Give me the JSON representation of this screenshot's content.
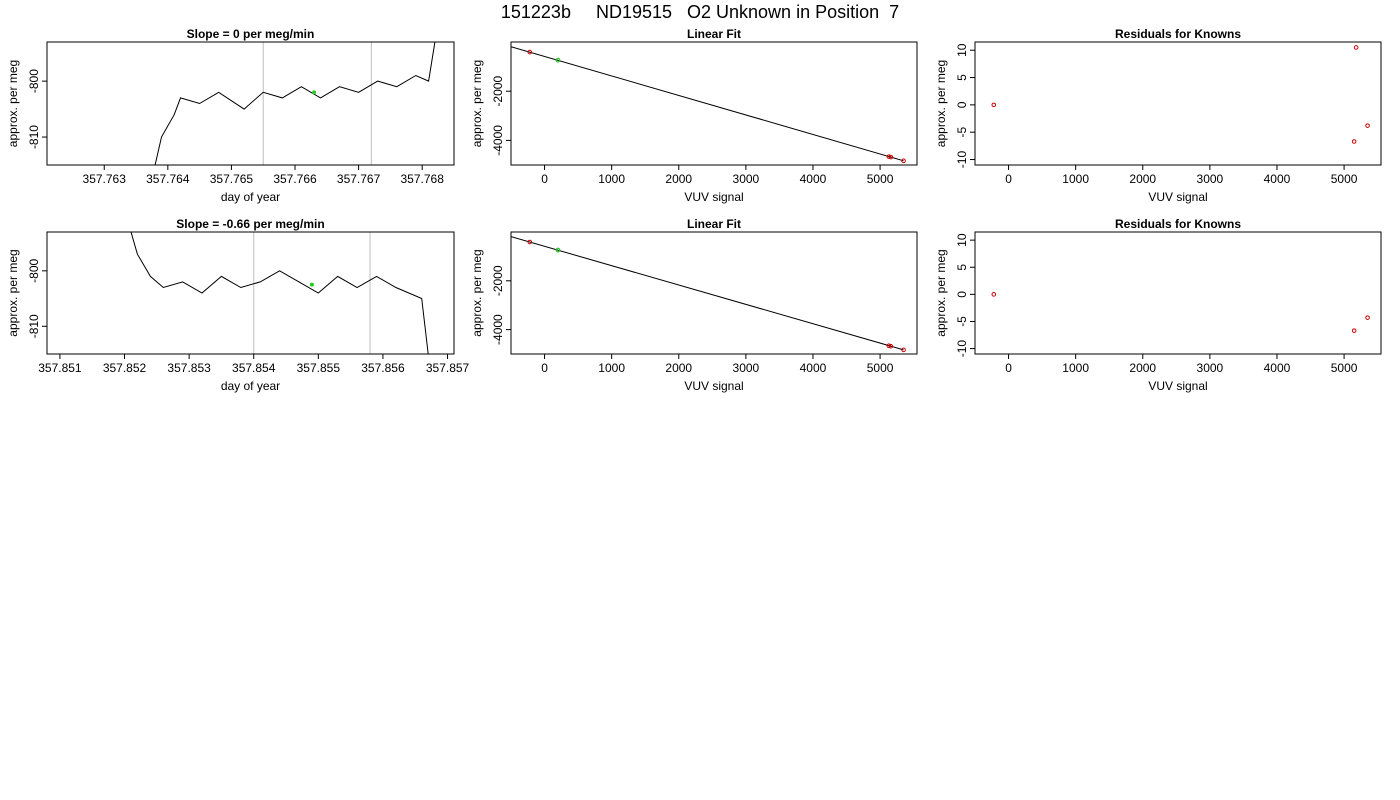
{
  "title": "151223b     ND19515   O2 Unknown in Position  7",
  "colors": {
    "line": "#000000",
    "frame": "#000000",
    "known_point": "#cc0000",
    "unknown_point": "#22cc22",
    "vline": "#bebebe"
  },
  "chart_data": [
    {
      "type": "line",
      "title": "Slope =  0  per meg/min",
      "xlabel": "day of year",
      "ylabel": "approx. per meg",
      "xlim": [
        357.7621,
        357.7685
      ],
      "ylim": [
        -815,
        -793
      ],
      "xticks": [
        357.763,
        357.764,
        357.765,
        357.766,
        357.767,
        357.768
      ],
      "xtick_labels": [
        "357.763",
        "357.764",
        "357.765",
        "357.766",
        "357.767",
        "357.768"
      ],
      "yticks": [
        -810,
        -800
      ],
      "ytick_labels": [
        "-810",
        "-800"
      ],
      "vlines": [
        357.7655,
        357.7672
      ],
      "series": [
        {
          "x": [
            357.7638,
            357.7639,
            357.764,
            357.7641,
            357.7642,
            357.7645,
            357.7648,
            357.7652,
            357.7655,
            357.7658,
            357.7661,
            357.7664,
            357.7667,
            357.767,
            357.7673,
            357.7676,
            357.7679,
            357.7681,
            357.7682
          ],
          "y": [
            -815,
            -810,
            -808,
            -806,
            -803,
            -804,
            -802,
            -805,
            -802,
            -803,
            -801,
            -803,
            -801,
            -802,
            -800,
            -801,
            -799,
            -800,
            -793
          ]
        }
      ],
      "highlight": {
        "x": 357.7663,
        "y": -802
      }
    },
    {
      "type": "scatter",
      "title": "Linear Fit",
      "xlabel": "VUV signal",
      "ylabel": "approx. per meg",
      "xlim": [
        -500,
        5550
      ],
      "ylim": [
        -5000,
        0
      ],
      "xticks": [
        0,
        1000,
        2000,
        3000,
        4000,
        5000
      ],
      "xtick_labels": [
        "0",
        "1000",
        "2000",
        "3000",
        "4000",
        "5000"
      ],
      "yticks": [
        -4000,
        -2000
      ],
      "ytick_labels": [
        "-4000",
        "-2000"
      ],
      "fit_line": {
        "x": [
          -500,
          5350
        ],
        "y": [
          -190,
          -4830
        ]
      },
      "known_points": [
        {
          "x": -220,
          "y": -410
        },
        {
          "x": 5130,
          "y": -4660
        },
        {
          "x": 5160,
          "y": -4680
        },
        {
          "x": 5350,
          "y": -4830
        }
      ],
      "unknown_points": [
        {
          "x": 200,
          "y": -740
        }
      ]
    },
    {
      "type": "scatter",
      "title": "Residuals for Knowns",
      "xlabel": "VUV signal",
      "ylabel": "approx. per meg",
      "xlim": [
        -500,
        5550
      ],
      "ylim": [
        -11,
        11.5
      ],
      "xticks": [
        0,
        1000,
        2000,
        3000,
        4000,
        5000
      ],
      "xtick_labels": [
        "0",
        "1000",
        "2000",
        "3000",
        "4000",
        "5000"
      ],
      "yticks": [
        -10,
        -5,
        0,
        5,
        10
      ],
      "ytick_labels": [
        "-10",
        "-5",
        "0",
        "5",
        "10"
      ],
      "known_points": [
        {
          "x": -220,
          "y": 0
        },
        {
          "x": 5180,
          "y": 10.5
        },
        {
          "x": 5150,
          "y": -6.7
        },
        {
          "x": 5350,
          "y": -3.8
        }
      ]
    },
    {
      "type": "line",
      "title": "Slope =  -0.66  per meg/min",
      "xlabel": "day of year",
      "ylabel": "approx. per meg",
      "xlim": [
        357.8508,
        357.8571
      ],
      "ylim": [
        -815,
        -793
      ],
      "xticks": [
        357.851,
        357.852,
        357.853,
        357.854,
        357.855,
        357.856,
        357.857
      ],
      "xtick_labels": [
        "357.851",
        "357.852",
        "357.853",
        "357.854",
        "357.855",
        "357.856",
        "357.857"
      ],
      "yticks": [
        -810,
        -800
      ],
      "ytick_labels": [
        "-810",
        "-800"
      ],
      "vlines": [
        357.854,
        357.8558
      ],
      "series": [
        {
          "x": [
            357.8521,
            357.8522,
            357.8523,
            357.8524,
            357.8526,
            357.8529,
            357.8532,
            357.8535,
            357.8538,
            357.8541,
            357.8544,
            357.8547,
            357.855,
            357.8553,
            357.8556,
            357.8559,
            357.8562,
            357.8564,
            357.8566,
            357.8567
          ],
          "y": [
            -793,
            -797,
            -799,
            -801,
            -803,
            -802,
            -804,
            -801,
            -803,
            -802,
            -800,
            -802,
            -804,
            -801,
            -803,
            -801,
            -803,
            -804,
            -805,
            -815
          ]
        }
      ],
      "highlight": {
        "x": 357.8549,
        "y": -802.5
      }
    },
    {
      "type": "scatter",
      "title": "Linear Fit",
      "xlabel": "VUV signal",
      "ylabel": "approx. per meg",
      "xlim": [
        -500,
        5550
      ],
      "ylim": [
        -5000,
        0
      ],
      "xticks": [
        0,
        1000,
        2000,
        3000,
        4000,
        5000
      ],
      "xtick_labels": [
        "0",
        "1000",
        "2000",
        "3000",
        "4000",
        "5000"
      ],
      "yticks": [
        -4000,
        -2000
      ],
      "ytick_labels": [
        "-4000",
        "-2000"
      ],
      "fit_line": {
        "x": [
          -500,
          5350
        ],
        "y": [
          -190,
          -4830
        ]
      },
      "known_points": [
        {
          "x": -220,
          "y": -410
        },
        {
          "x": 5130,
          "y": -4660
        },
        {
          "x": 5160,
          "y": -4680
        },
        {
          "x": 5350,
          "y": -4830
        }
      ],
      "unknown_points": [
        {
          "x": 200,
          "y": -740
        }
      ]
    },
    {
      "type": "scatter",
      "title": "Residuals for Knowns",
      "xlabel": "VUV signal",
      "ylabel": "approx. per meg",
      "xlim": [
        -500,
        5550
      ],
      "ylim": [
        -11,
        11.5
      ],
      "xticks": [
        0,
        1000,
        2000,
        3000,
        4000,
        5000
      ],
      "xtick_labels": [
        "0",
        "1000",
        "2000",
        "3000",
        "4000",
        "5000"
      ],
      "yticks": [
        -10,
        -5,
        0,
        5,
        10
      ],
      "ytick_labels": [
        "-10",
        "-5",
        "0",
        "5",
        "10"
      ],
      "known_points": [
        {
          "x": -220,
          "y": 0
        },
        {
          "x": 5150,
          "y": -6.7
        },
        {
          "x": 5350,
          "y": -4.3
        }
      ]
    }
  ]
}
